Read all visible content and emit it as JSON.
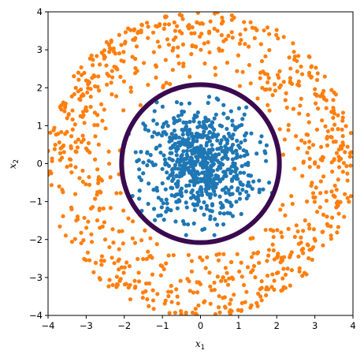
{
  "chart_data": {
    "type": "scatter",
    "title": "",
    "xlabel": {
      "base": "x",
      "sub": "1"
    },
    "ylabel": {
      "base": "x",
      "sub": "2"
    },
    "xlim": [
      -4,
      4
    ],
    "ylim": [
      -4,
      4
    ],
    "xticks": [
      -4,
      -3,
      -2,
      -1,
      0,
      1,
      2,
      3,
      4
    ],
    "yticks": [
      -4,
      -3,
      -2,
      -1,
      0,
      1,
      2,
      3,
      4
    ],
    "xtick_labels": [
      "−4",
      "−3",
      "−2",
      "−1",
      "0",
      "1",
      "2",
      "3",
      "4"
    ],
    "ytick_labels": [
      "−4",
      "−3",
      "−2",
      "−1",
      "0",
      "1",
      "2",
      "3",
      "4"
    ],
    "grid": false,
    "legend": "none",
    "series": [
      {
        "color": "#1f77b4",
        "point_count": 700,
        "distribution": "approximately Gaussian cloud centred at (0, 0), radius up to about 2",
        "sample_points": [
          [
            0,
            0
          ],
          [
            0.3,
            -0.2
          ],
          [
            -0.4,
            0.5
          ],
          [
            1.2,
            0.8
          ],
          [
            -1.1,
            -0.9
          ],
          [
            0.2,
            1.6
          ],
          [
            -1.7,
            0.3
          ],
          [
            1.8,
            -0.5
          ],
          [
            0.6,
            -1.6
          ],
          [
            -0.7,
            1.2
          ]
        ]
      },
      {
        "color": "#ff7f0e",
        "point_count": 850,
        "distribution": "ring between radius about 2 and 4 around (0, 0)",
        "sample_points": [
          [
            3,
            0
          ],
          [
            -3,
            0.4
          ],
          [
            0.2,
            3.2
          ],
          [
            -0.3,
            -3.1
          ],
          [
            2.4,
            2.1
          ],
          [
            -2.5,
            -2.0
          ],
          [
            2.1,
            -2.6
          ],
          [
            -2.2,
            2.5
          ],
          [
            3.6,
            -1.0
          ],
          [
            -3.5,
            1.2
          ]
        ]
      }
    ],
    "decision_boundary": {
      "shape": "circle",
      "center": [
        0,
        0
      ],
      "radius": 2.07,
      "color": "#3a0a4f"
    }
  }
}
